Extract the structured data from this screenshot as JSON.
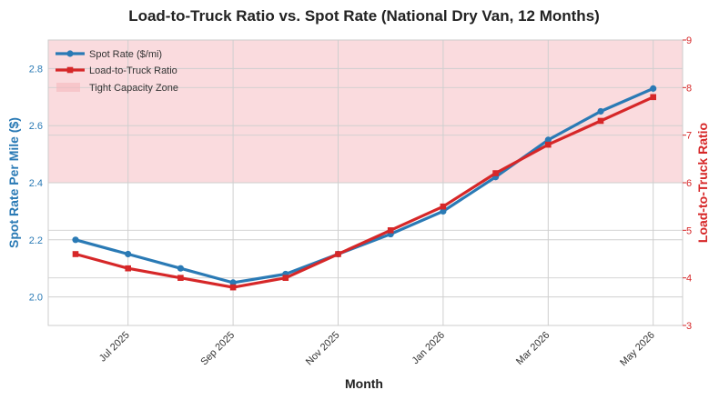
{
  "chart_data": {
    "type": "line",
    "title": "Load-to-Truck Ratio vs. Spot Rate (National Dry Van, 12 Months)",
    "xlabel": "Month",
    "ylabel_left": "Spot Rate Per Mile ($)",
    "ylabel_right": "Load-to-Truck Ratio",
    "x_tick_labels": [
      "Jul 2025",
      "Sep 2025",
      "Nov 2025",
      "Jan 2026",
      "Mar 2026",
      "May 2026"
    ],
    "x": [
      "2025-06",
      "2025-07",
      "2025-08",
      "2025-09",
      "2025-10",
      "2025-11",
      "2025-12",
      "2026-01",
      "2026-02",
      "2026-03",
      "2026-04",
      "2026-05"
    ],
    "ylim_left": [
      1.9,
      2.9
    ],
    "yticks_left": [
      "2.0",
      "2.2",
      "2.4",
      "2.6",
      "2.8"
    ],
    "ylim_right": [
      3,
      9
    ],
    "yticks_right": [
      "3",
      "4",
      "5",
      "6",
      "7",
      "8",
      "9"
    ],
    "series": [
      {
        "name": "Spot Rate ($/mi)",
        "axis": "left",
        "color": "#2a7ab5",
        "marker": "circle",
        "values": [
          2.2,
          2.15,
          2.1,
          2.05,
          2.08,
          2.15,
          2.22,
          2.3,
          2.42,
          2.55,
          2.65,
          2.73
        ]
      },
      {
        "name": "Load-to-Truck Ratio",
        "axis": "right",
        "color": "#d62728",
        "marker": "square",
        "values": [
          4.5,
          4.2,
          4.0,
          3.8,
          4.0,
          4.5,
          5.0,
          5.5,
          6.2,
          6.8,
          7.3,
          7.8
        ]
      }
    ],
    "band": {
      "name": "Tight Capacity Zone",
      "axis": "right",
      "from": 6,
      "to": 9,
      "color": "#f5b7bd"
    },
    "grid": true,
    "legend": "upper-left"
  }
}
